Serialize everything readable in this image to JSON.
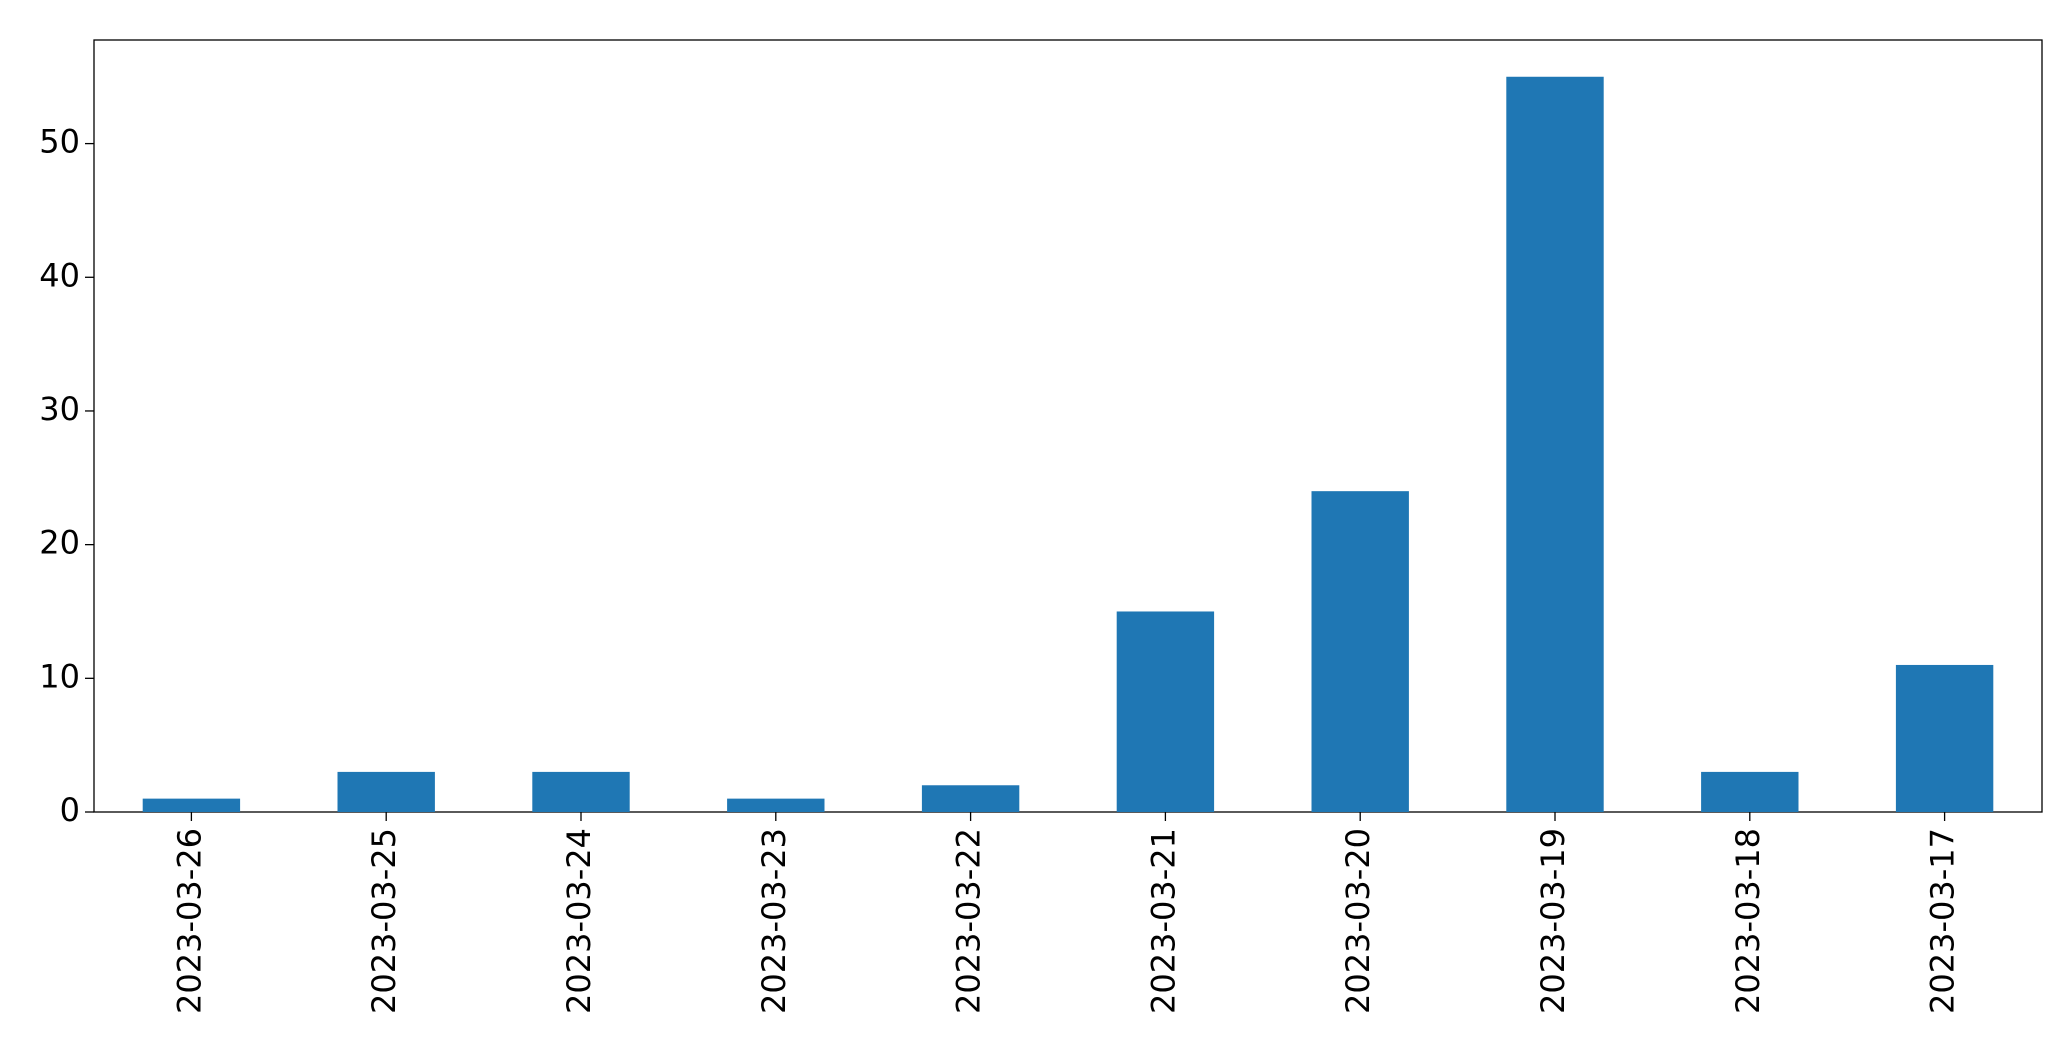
{
  "chart_data": {
    "type": "bar",
    "categories": [
      "2023-03-26",
      "2023-03-25",
      "2023-03-24",
      "2023-03-23",
      "2023-03-22",
      "2023-03-21",
      "2023-03-20",
      "2023-03-19",
      "2023-03-18",
      "2023-03-17"
    ],
    "values": [
      1,
      3,
      3,
      1,
      2,
      15,
      24,
      55,
      3,
      11
    ],
    "color": "#1f77b4",
    "ylim": [
      0,
      57.75
    ],
    "yticks": [
      0,
      10,
      20,
      30,
      40,
      50
    ],
    "grid": false
  }
}
